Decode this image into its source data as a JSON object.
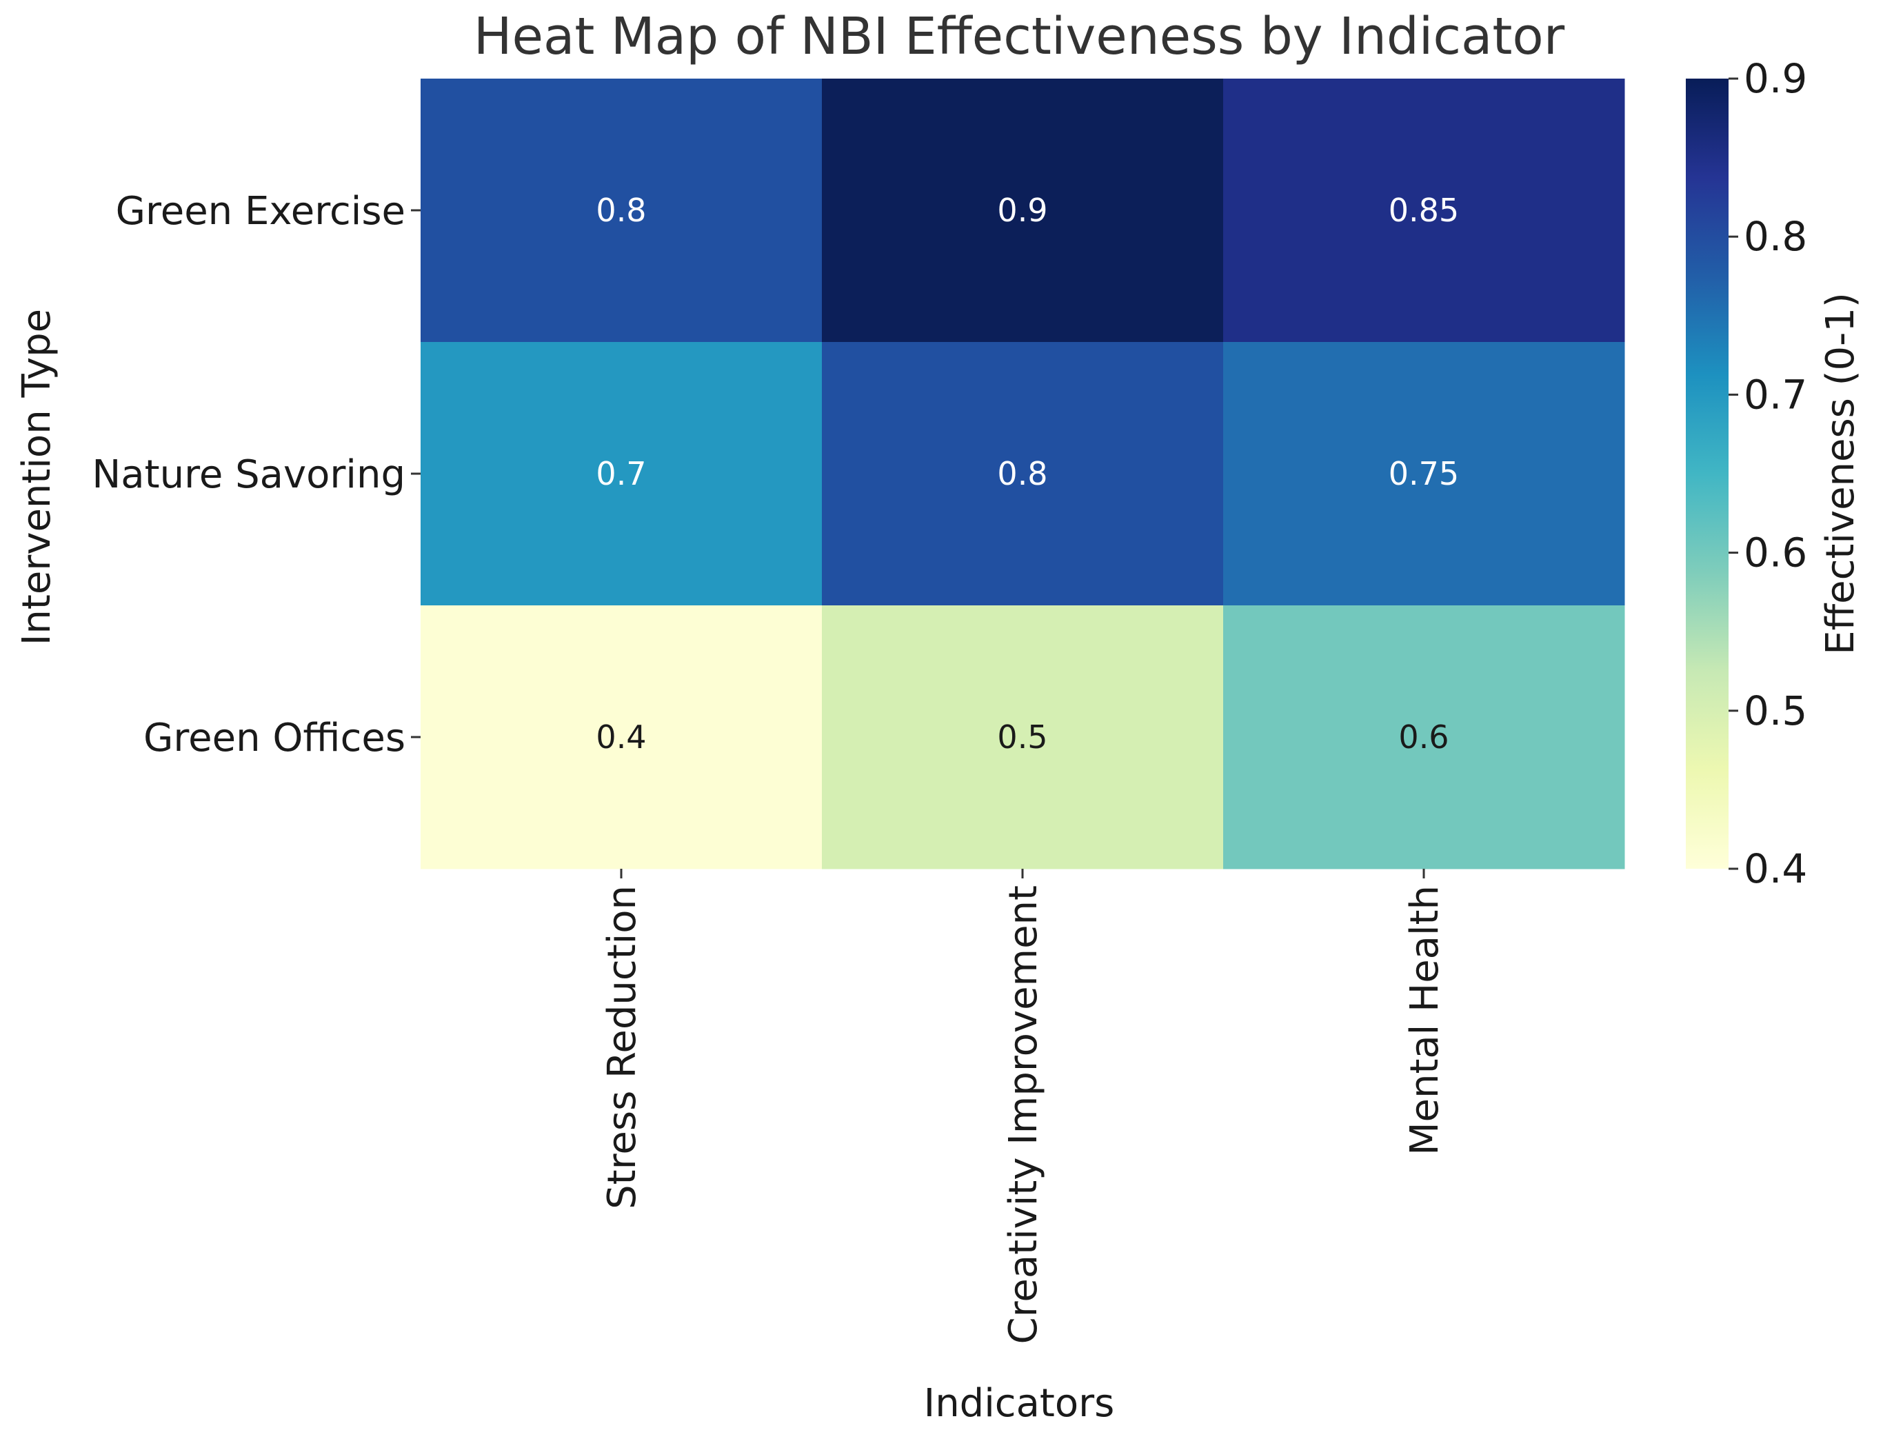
{
  "chart_data": {
    "type": "heatmap",
    "title": "Heat Map of NBI Effectiveness by Indicator",
    "xlabel": "Indicators",
    "ylabel": "Intervention Type",
    "x_categories": [
      "Stress Reduction",
      "Creativity Improvement",
      "Mental Health"
    ],
    "y_categories": [
      "Green Exercise",
      "Nature Savoring",
      "Green Offices"
    ],
    "values": [
      [
        0.8,
        0.9,
        0.85
      ],
      [
        0.7,
        0.8,
        0.75
      ],
      [
        0.4,
        0.5,
        0.6
      ]
    ],
    "value_labels": [
      [
        "0.8",
        "0.9",
        "0.85"
      ],
      [
        "0.7",
        "0.8",
        "0.75"
      ],
      [
        "0.4",
        "0.5",
        "0.6"
      ]
    ],
    "colormap": "YlGnBu",
    "colorbar": {
      "label": "Effectiveness (0-1)",
      "range": [
        0.4,
        0.9
      ],
      "ticks": [
        0.4,
        0.5,
        0.6,
        0.7,
        0.8,
        0.9
      ],
      "tick_labels": [
        "0.4",
        "0.5",
        "0.6",
        "0.7",
        "0.8",
        "0.9"
      ]
    }
  },
  "colors": {
    "cells": [
      [
        "#2150a1",
        "#0c1f59",
        "#1f2f88"
      ],
      [
        "#2498c1",
        "#2150a1",
        "#226eb0"
      ],
      [
        "#fdfed4",
        "#d5efb3",
        "#73c8bd"
      ]
    ],
    "text_dark": "#1a1a1a",
    "text_light": "#ffffff",
    "colorbar_stops": [
      "#ffffd9",
      "#edf8b1",
      "#c7e9b4",
      "#7fcdbb",
      "#41b6c4",
      "#1d91c0",
      "#225ea8",
      "#253494",
      "#081d58"
    ]
  }
}
